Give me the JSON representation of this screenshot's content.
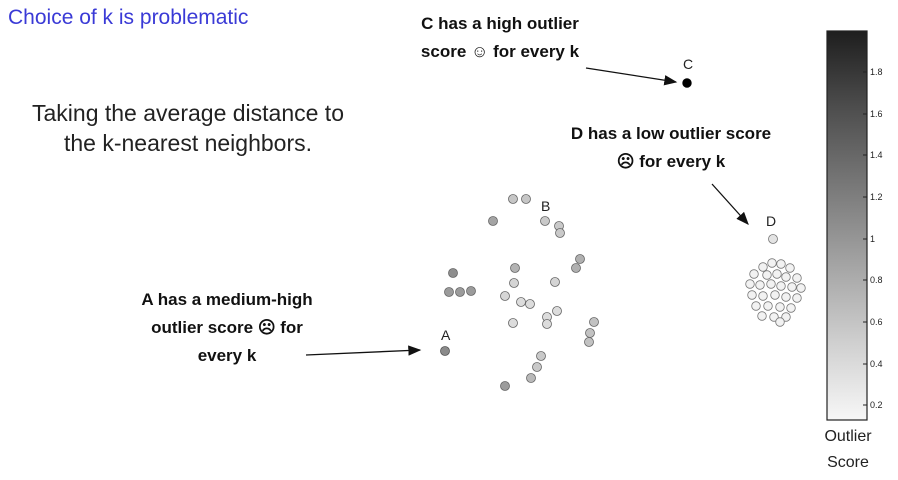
{
  "slide": {
    "title": "Choice of k is problematic",
    "description_line1": "Taking the average distance to",
    "description_line2": "the k-nearest neighbors."
  },
  "annotations": {
    "c_line1": "C has a high outlier",
    "c_line2": "score ☺ for every k",
    "d_line1": "D has a low outlier score",
    "d_line2": "☹ for every k",
    "a_line1": "A has a medium-high",
    "a_line2": "outlier score ☹ for",
    "a_line3": "every k"
  },
  "points": {
    "a_label": "A",
    "b_label": "B",
    "c_label": "C",
    "d_label": "D"
  },
  "colorbar": {
    "ticks": [
      "1.8",
      "1.6",
      "1.4",
      "1.2",
      "1",
      "0.8",
      "0.6",
      "0.4",
      "0.2"
    ],
    "title_line1": "Outlier",
    "title_line2": "Score"
  }
}
